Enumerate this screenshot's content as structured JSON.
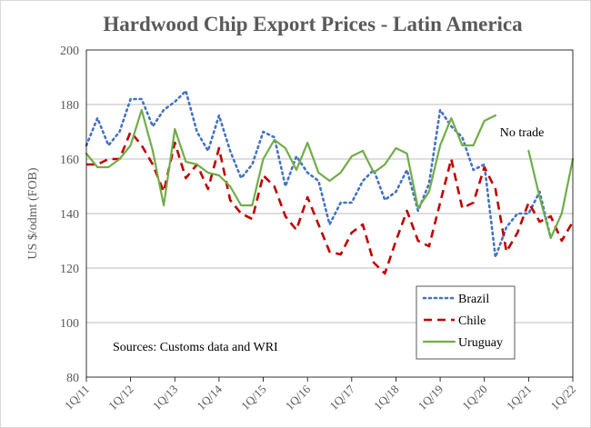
{
  "chart_data": {
    "type": "line",
    "title": "Hardwood Chip Export Prices - Latin America",
    "ylabel": "US $/odmt (FOB)",
    "xlabel": "",
    "ylim": [
      80,
      200
    ],
    "yticks": [
      80,
      100,
      120,
      140,
      160,
      180,
      200
    ],
    "grid": "horizontal",
    "legend_position": "bottom-right",
    "annotations": [
      "No trade",
      "Sources: Customs data and WRI"
    ],
    "categories": [
      "1Q/11",
      "2Q/11",
      "3Q/11",
      "4Q/11",
      "1Q/12",
      "2Q/12",
      "3Q/12",
      "4Q/12",
      "1Q/13",
      "2Q/13",
      "3Q/13",
      "4Q/13",
      "1Q/14",
      "2Q/14",
      "3Q/14",
      "4Q/14",
      "1Q/15",
      "2Q/15",
      "3Q/15",
      "4Q/15",
      "1Q/16",
      "2Q/16",
      "3Q/16",
      "4Q/16",
      "1Q/17",
      "2Q/17",
      "3Q/17",
      "4Q/17",
      "1Q/18",
      "2Q/18",
      "3Q/18",
      "4Q/18",
      "1Q/19",
      "2Q/19",
      "3Q/19",
      "4Q/19",
      "1Q/20",
      "2Q/20",
      "3Q/20",
      "4Q/20",
      "1Q/21",
      "2Q/21",
      "3Q/21",
      "4Q/21",
      "1Q/22"
    ],
    "tick_labels": [
      "1Q/11",
      "1Q/12",
      "1Q/13",
      "1Q/14",
      "1Q/15",
      "1Q/16",
      "1Q/17",
      "1Q/18",
      "1Q/19",
      "1Q/20",
      "1Q/21",
      "1Q/22"
    ],
    "series": [
      {
        "name": "Brazil",
        "color": "#4472c4",
        "dash": "dotted",
        "values": [
          165,
          175,
          165,
          170,
          182,
          182,
          172,
          178,
          181,
          185,
          170,
          163,
          176,
          163,
          153,
          158,
          170,
          168,
          150,
          161,
          155,
          152,
          136,
          144,
          144,
          152,
          156,
          145,
          148,
          156,
          141,
          151,
          178,
          172,
          168,
          156,
          158,
          124,
          135,
          140,
          140,
          148,
          131,
          null,
          null
        ]
      },
      {
        "name": "Chile",
        "color": "#c00000",
        "dash": "dashed",
        "values": [
          158,
          158,
          160,
          160,
          170,
          165,
          158,
          148,
          166,
          153,
          158,
          149,
          164,
          145,
          140,
          138,
          154,
          150,
          139,
          134,
          146,
          136,
          126,
          125,
          133,
          136,
          122,
          118,
          130,
          141,
          130,
          128,
          144,
          160,
          142,
          144,
          157,
          149,
          126,
          133,
          144,
          137,
          139,
          130,
          137
        ]
      },
      {
        "name": "Uruguay",
        "color": "#70ad47",
        "dash": "solid",
        "values": [
          162,
          157,
          157,
          160,
          165,
          178,
          163,
          143,
          171,
          159,
          158,
          155,
          154,
          150,
          143,
          143,
          160,
          167,
          164,
          156,
          166,
          155,
          152,
          155,
          161,
          163,
          155,
          158,
          164,
          162,
          142,
          148,
          165,
          175,
          165,
          165,
          174,
          176,
          null,
          null,
          163,
          146,
          131,
          140,
          160
        ]
      }
    ]
  }
}
